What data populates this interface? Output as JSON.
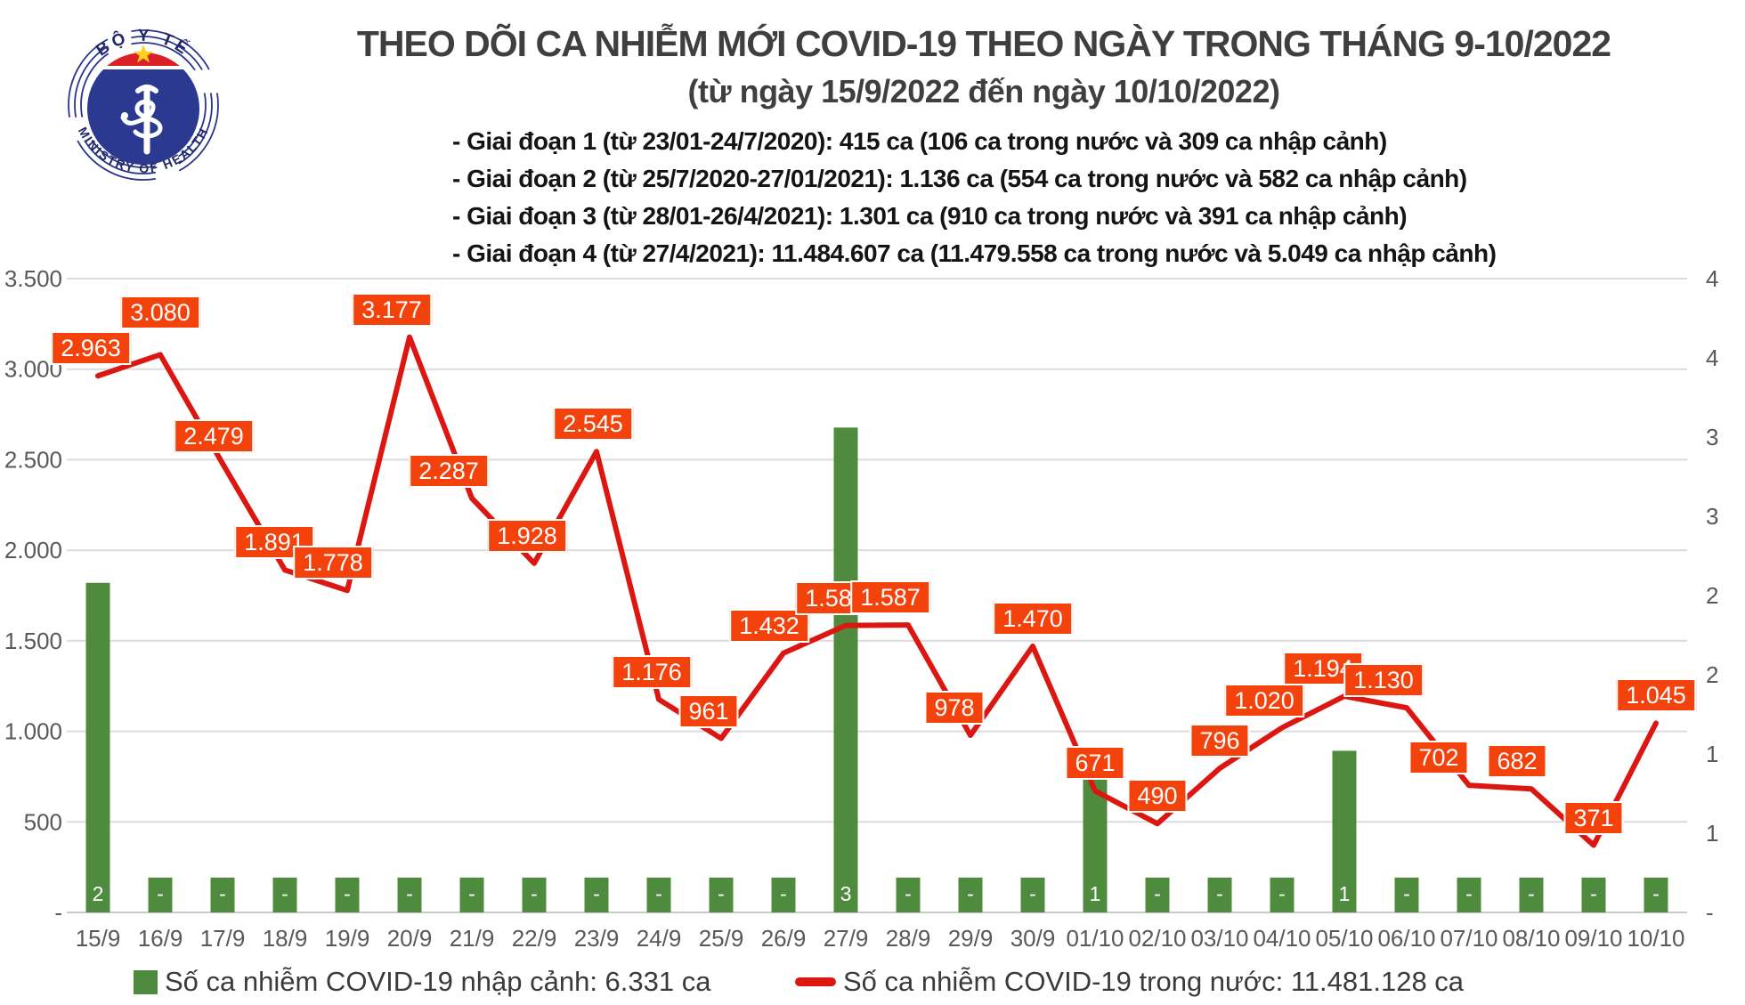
{
  "header": {
    "logo": {
      "top_text": "BỘ Y TẾ",
      "bottom_text": "MINISTRY OF HEALTH"
    },
    "title_line1": "THEO DÕI CA NHIỄM MỚI COVID-19 THEO NGÀY TRONG THÁNG 9-10/2022",
    "title_line2": "(từ ngày 15/9/2022 đến ngày 10/10/2022)",
    "phases": [
      "- Giai đoạn 1 (từ 23/01-24/7/2020): 415 ca (106 ca trong nước và 309 ca nhập cảnh)",
      "- Giai đoạn 2 (từ 25/7/2020-27/01/2021): 1.136 ca (554 ca trong nước và 582 ca nhập cảnh)",
      "- Giai đoạn 3 (từ 28/01-26/4/2021): 1.301 ca (910 ca trong nước và 391 ca nhập cảnh)",
      "- Giai đoạn 4 (từ 27/4/2021): 11.484.607 ca (11.479.558 ca trong nước và 5.049 ca nhập cảnh)"
    ]
  },
  "chart_data": {
    "type": "combo-bar-line",
    "categories": [
      "15/9",
      "16/9",
      "17/9",
      "18/9",
      "19/9",
      "20/9",
      "21/9",
      "22/9",
      "23/9",
      "24/9",
      "25/9",
      "26/9",
      "27/9",
      "28/9",
      "29/9",
      "30/9",
      "01/10",
      "02/10",
      "03/10",
      "04/10",
      "05/10",
      "06/10",
      "07/10",
      "08/10",
      "09/10",
      "10/10"
    ],
    "series": [
      {
        "name": "Số ca nhiễm COVID-19 nhập cảnh",
        "type": "bar",
        "axis": "right",
        "color": "#4e8b3f",
        "values": [
          2,
          0,
          0,
          0,
          0,
          0,
          0,
          0,
          0,
          0,
          0,
          0,
          3,
          0,
          0,
          0,
          1,
          0,
          0,
          0,
          1,
          0,
          0,
          0,
          0,
          0
        ],
        "labels": [
          "2",
          "-",
          "-",
          "-",
          "-",
          "-",
          "-",
          "-",
          "-",
          "-",
          "-",
          "-",
          "3",
          "-",
          "-",
          "-",
          "1",
          "-",
          "-",
          "-",
          "1",
          "-",
          "-",
          "-",
          "-",
          "-"
        ],
        "plotted_heights_right_axis_units": [
          2.08,
          0.22,
          0.22,
          0.22,
          0.22,
          0.22,
          0.22,
          0.22,
          0.22,
          0.22,
          0.22,
          0.22,
          3.06,
          0.22,
          0.22,
          0.22,
          0.87,
          0.22,
          0.22,
          0.22,
          1.02,
          0.22,
          0.22,
          0.22,
          0.22,
          0.22
        ]
      },
      {
        "name": "Số ca nhiễm COVID-19 trong nước",
        "type": "line",
        "axis": "left",
        "color": "#dc1712",
        "values": [
          2963,
          3080,
          2479,
          1891,
          1778,
          3177,
          2287,
          1928,
          2545,
          1176,
          961,
          1432,
          1585,
          1587,
          978,
          1470,
          671,
          490,
          796,
          1020,
          1194,
          1130,
          702,
          682,
          371,
          1045
        ],
        "labels": [
          "2.963",
          "3.080",
          "2.479",
          "1.891",
          "1.778",
          "3.177",
          "2.287",
          "1.928",
          "2.545",
          "1.176",
          "961",
          "1.432",
          "1.585",
          "1.587",
          "978",
          "1.470",
          "671",
          "490",
          "796",
          "1.020",
          "1.194",
          "1.130",
          "702",
          "682",
          "371",
          "1.045"
        ]
      }
    ],
    "label_offsets": {
      "0": {
        "dx": -8
      },
      "1": {
        "dy": -16
      },
      "2": {
        "dx": -10
      },
      "3": {
        "dx": -12
      },
      "4": {
        "dx": -16
      },
      "5": {
        "dx": -20
      },
      "6": {
        "dx": -26
      },
      "7": {
        "dx": -8
      },
      "8": {
        "dx": -4
      },
      "9": {
        "dx": -8
      },
      "10": {
        "dx": -14
      },
      "11": {
        "dx": -16
      },
      "12": {
        "dx": -12
      },
      "13": {
        "dx": -20
      },
      "14": {
        "dx": -18
      },
      "19": {
        "dx": -20
      },
      "20": {
        "dx": -24
      },
      "21": {
        "dx": -26
      },
      "22": {
        "dx": -34
      },
      "23": {
        "dx": -16
      }
    },
    "left_axis": {
      "min": 0,
      "max": 3500,
      "step": 500,
      "tick_labels": [
        "3.500",
        "3.000",
        "2.500",
        "2.000",
        "1.500",
        "1.000",
        "500",
        "-"
      ]
    },
    "right_axis": {
      "min": 0,
      "max": 4,
      "step": 0.5,
      "tick_labels": [
        "4",
        "4",
        "3",
        "3",
        "2",
        "2",
        "1",
        "1",
        "-"
      ]
    },
    "legend": [
      {
        "swatch": "bar",
        "color": "#4e8b3f",
        "label": "Số ca nhiễm COVID-19 nhập cảnh: 6.331 ca"
      },
      {
        "swatch": "line",
        "color": "#dc1712",
        "label": "Số ca nhiễm COVID-19 trong nước: 11.481.128 ca"
      }
    ],
    "grid": true,
    "legend_position": "bottom"
  },
  "colors": {
    "data_label_bg": "#f4420c",
    "line": "#dc1712",
    "bar": "#4e8b3f",
    "gridline": "#dbdbdb",
    "axis_line": "#c9c9c9",
    "axis_text": "#595959",
    "title_text": "#3f3f3f",
    "logo_red": "#da2128",
    "logo_blue": "#2b3990",
    "logo_star": "#ffd11a"
  }
}
